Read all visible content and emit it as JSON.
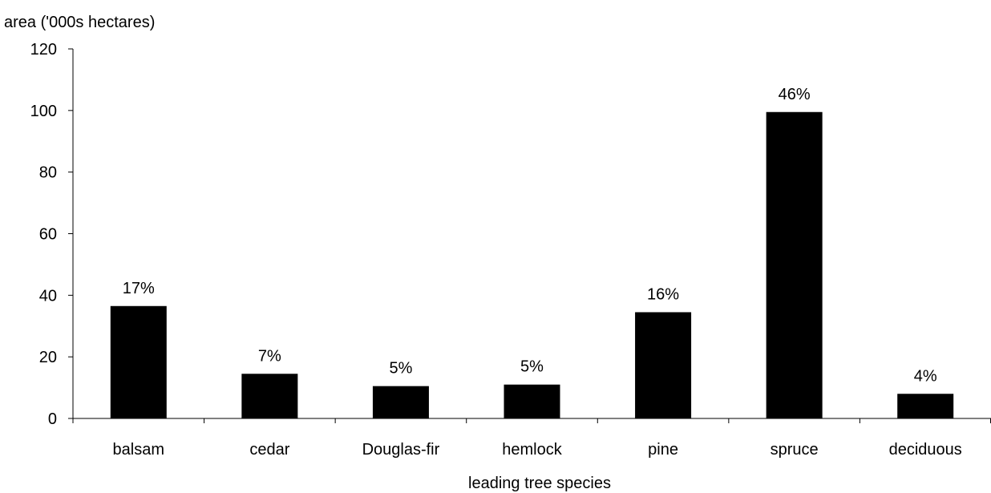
{
  "chart_data": {
    "type": "bar",
    "title": "",
    "ylabel": "area ('000s hectares)",
    "xlabel": "leading tree species",
    "ylim": [
      0,
      120
    ],
    "yticks": [
      0,
      20,
      40,
      60,
      80,
      100,
      120
    ],
    "categories": [
      "balsam",
      "cedar",
      "Douglas-fir",
      "hemlock",
      "pine",
      "spruce",
      "deciduous"
    ],
    "values": [
      36.5,
      14.5,
      10.5,
      11,
      34.5,
      99.5,
      8
    ],
    "data_labels": [
      "17%",
      "7%",
      "5%",
      "5%",
      "16%",
      "46%",
      "4%"
    ],
    "grid": false,
    "legend": "none",
    "bar_color": "#000000"
  }
}
